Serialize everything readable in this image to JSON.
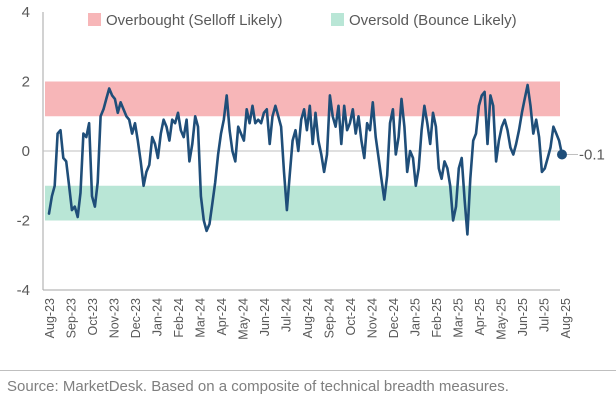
{
  "chart_data": {
    "type": "line",
    "title": "",
    "xlabel": "",
    "ylabel": "",
    "ylim": [
      -4,
      4
    ],
    "yticks": [
      -4,
      -2,
      0,
      2,
      4
    ],
    "ytick_labels": [
      "-4",
      "-2",
      "0",
      "2",
      "4"
    ],
    "x_tick_labels": [
      "Aug-23",
      "Sep-23",
      "Oct-23",
      "Nov-23",
      "Dec-23",
      "Jan-24",
      "Feb-24",
      "Mar-24",
      "Apr-24",
      "May-24",
      "Jun-24",
      "Jul-24",
      "Aug-24",
      "Sep-24",
      "Oct-24",
      "Nov-24",
      "Dec-24",
      "Jan-25",
      "Feb-25",
      "Mar-25",
      "Apr-25",
      "May-25",
      "Jun-25",
      "Jul-25",
      "Aug-25"
    ],
    "x_range": [
      "2023-08",
      "2025-08"
    ],
    "bands": [
      {
        "name": "Overbought (Selloff Likely)",
        "from": 1,
        "to": 2,
        "color": "#f7b6b8"
      },
      {
        "name": "Oversold (Bounce Likely)",
        "from": -2,
        "to": -1,
        "color": "#b9e6d6"
      }
    ],
    "legend": {
      "placement": "top",
      "entries": [
        "Overbought (Selloff Likely)",
        "Oversold (Bounce Likely)"
      ]
    },
    "grid": false,
    "line_color": "#1f4e79",
    "last_value_label": "-0.1",
    "series": [
      {
        "values": [
          -1.8,
          -1.3,
          -1.0,
          0.5,
          0.6,
          -0.2,
          -0.3,
          -1.0,
          -1.7,
          -1.6,
          -1.9,
          -1.2,
          0.5,
          0.4,
          0.8,
          -1.3,
          -1.6,
          -0.9,
          1.0,
          1.2,
          1.5,
          1.8,
          1.6,
          1.5,
          1.1,
          1.4,
          1.2,
          1.0,
          0.9,
          0.5,
          0.8,
          0.3,
          -0.3,
          -1.0,
          -0.6,
          -0.4,
          0.4,
          0.2,
          -0.2,
          0.5,
          0.9,
          0.7,
          0.3,
          0.9,
          0.8,
          1.1,
          0.6,
          0.4,
          0.9,
          -0.3,
          0.2,
          1.0,
          0.7,
          -1.3,
          -2.0,
          -2.3,
          -2.1,
          -1.5,
          -0.9,
          -0.1,
          0.5,
          0.9,
          1.6,
          0.6,
          0.0,
          -0.3,
          0.7,
          0.5,
          0.3,
          1.2,
          0.8,
          1.3,
          0.8,
          0.9,
          0.8,
          1.1,
          1.2,
          0.2,
          1.0,
          1.3,
          1.0,
          0.7,
          -0.6,
          -1.7,
          -0.7,
          0.3,
          0.6,
          0.0,
          0.9,
          1.2,
          0.6,
          1.3,
          0.2,
          1.1,
          0.3,
          -0.1,
          -0.6,
          -0.1,
          1.6,
          1.0,
          0.7,
          1.3,
          0.2,
          1.3,
          0.6,
          0.8,
          1.2,
          0.5,
          1.0,
          0.3,
          -0.2,
          0.8,
          0.6,
          1.4,
          0.4,
          -0.2,
          -0.8,
          -1.4,
          -0.7,
          0.8,
          1.2,
          -0.1,
          0.4,
          1.5,
          0.7,
          -0.6,
          0.0,
          -0.2,
          -1.0,
          -0.5,
          0.6,
          1.3,
          0.8,
          0.2,
          1.1,
          0.7,
          -0.5,
          -0.8,
          -0.3,
          -0.5,
          -1.0,
          -2.0,
          -1.6,
          -0.5,
          -0.2,
          -1.4,
          -2.4,
          -0.8,
          0.3,
          0.5,
          1.3,
          1.6,
          1.7,
          0.2,
          1.6,
          1.3,
          -0.3,
          0.3,
          0.7,
          0.9,
          0.6,
          0.1,
          -0.1,
          0.2,
          0.6,
          1.1,
          1.5,
          1.9,
          1.3,
          0.5,
          0.9,
          0.4,
          -0.6,
          -0.5,
          -0.2,
          0.1,
          0.7,
          0.5,
          0.3,
          -0.1
        ]
      }
    ]
  },
  "source": "Source: MarketDesk. Based on a composite of technical breadth measures."
}
